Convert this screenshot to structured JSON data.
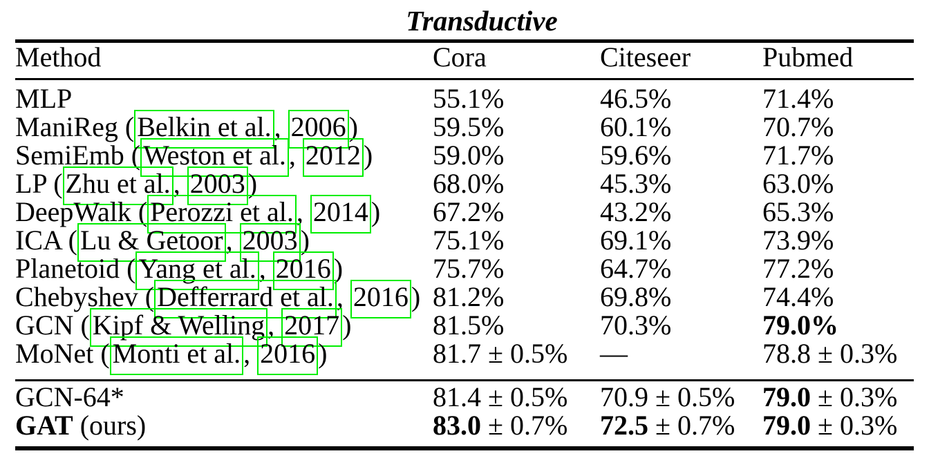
{
  "section_title": "Transductive",
  "colors": {
    "link_box_green": "#00EE00",
    "text": "#000000",
    "background": "#FFFFFF"
  },
  "table": {
    "headers": [
      "Method",
      "Cora",
      "Citeseer",
      "Pubmed"
    ],
    "main_rows": [
      {
        "method": [
          {
            "t": "MLP",
            "s": "plain"
          }
        ],
        "cora": [
          {
            "t": "55.1%",
            "s": "plain"
          }
        ],
        "citeseer": [
          {
            "t": "46.5%",
            "s": "plain"
          }
        ],
        "pubmed": [
          {
            "t": "71.4%",
            "s": "plain"
          }
        ]
      },
      {
        "method": [
          {
            "t": "ManiReg (",
            "s": "plain"
          },
          {
            "t": "Belkin et al.",
            "s": "cite"
          },
          {
            "t": ", ",
            "s": "plain"
          },
          {
            "t": "2006",
            "s": "cite"
          },
          {
            "t": ")",
            "s": "plain"
          }
        ],
        "cora": [
          {
            "t": "59.5%",
            "s": "plain"
          }
        ],
        "citeseer": [
          {
            "t": "60.1%",
            "s": "plain"
          }
        ],
        "pubmed": [
          {
            "t": "70.7%",
            "s": "plain"
          }
        ]
      },
      {
        "method": [
          {
            "t": "SemiEmb (",
            "s": "plain"
          },
          {
            "t": "Weston et al.",
            "s": "cite"
          },
          {
            "t": ", ",
            "s": "plain"
          },
          {
            "t": "2012",
            "s": "cite"
          },
          {
            "t": ")",
            "s": "plain"
          }
        ],
        "cora": [
          {
            "t": "59.0%",
            "s": "plain"
          }
        ],
        "citeseer": [
          {
            "t": "59.6%",
            "s": "plain"
          }
        ],
        "pubmed": [
          {
            "t": "71.7%",
            "s": "plain"
          }
        ]
      },
      {
        "method": [
          {
            "t": "LP (",
            "s": "plain"
          },
          {
            "t": "Zhu et al.",
            "s": "cite"
          },
          {
            "t": ", ",
            "s": "plain"
          },
          {
            "t": "2003",
            "s": "cite"
          },
          {
            "t": ")",
            "s": "plain"
          }
        ],
        "cora": [
          {
            "t": "68.0%",
            "s": "plain"
          }
        ],
        "citeseer": [
          {
            "t": "45.3%",
            "s": "plain"
          }
        ],
        "pubmed": [
          {
            "t": "63.0%",
            "s": "plain"
          }
        ]
      },
      {
        "method": [
          {
            "t": "DeepWalk (",
            "s": "plain"
          },
          {
            "t": "Perozzi et al.",
            "s": "cite"
          },
          {
            "t": ", ",
            "s": "plain"
          },
          {
            "t": "2014",
            "s": "cite"
          },
          {
            "t": ")",
            "s": "plain"
          }
        ],
        "cora": [
          {
            "t": "67.2%",
            "s": "plain"
          }
        ],
        "citeseer": [
          {
            "t": "43.2%",
            "s": "plain"
          }
        ],
        "pubmed": [
          {
            "t": "65.3%",
            "s": "plain"
          }
        ]
      },
      {
        "method": [
          {
            "t": "ICA (",
            "s": "plain"
          },
          {
            "t": "Lu & Getoor",
            "s": "cite"
          },
          {
            "t": ", ",
            "s": "plain"
          },
          {
            "t": "2003",
            "s": "cite"
          },
          {
            "t": ")",
            "s": "plain"
          }
        ],
        "cora": [
          {
            "t": "75.1%",
            "s": "plain"
          }
        ],
        "citeseer": [
          {
            "t": "69.1%",
            "s": "plain"
          }
        ],
        "pubmed": [
          {
            "t": "73.9%",
            "s": "plain"
          }
        ]
      },
      {
        "method": [
          {
            "t": "Planetoid (",
            "s": "plain"
          },
          {
            "t": "Yang et al.",
            "s": "cite"
          },
          {
            "t": ", ",
            "s": "plain"
          },
          {
            "t": "2016",
            "s": "cite"
          },
          {
            "t": ")",
            "s": "plain"
          }
        ],
        "cora": [
          {
            "t": "75.7%",
            "s": "plain"
          }
        ],
        "citeseer": [
          {
            "t": "64.7%",
            "s": "plain"
          }
        ],
        "pubmed": [
          {
            "t": "77.2%",
            "s": "plain"
          }
        ]
      },
      {
        "method": [
          {
            "t": "Chebyshev (",
            "s": "plain"
          },
          {
            "t": "Defferrard et al.",
            "s": "cite"
          },
          {
            "t": ", ",
            "s": "plain"
          },
          {
            "t": "2016",
            "s": "cite"
          },
          {
            "t": ")",
            "s": "plain"
          }
        ],
        "cora": [
          {
            "t": "81.2%",
            "s": "plain"
          }
        ],
        "citeseer": [
          {
            "t": "69.8%",
            "s": "plain"
          }
        ],
        "pubmed": [
          {
            "t": "74.4%",
            "s": "plain"
          }
        ]
      },
      {
        "method": [
          {
            "t": "GCN (",
            "s": "plain"
          },
          {
            "t": "Kipf & Welling",
            "s": "cite"
          },
          {
            "t": ", ",
            "s": "plain"
          },
          {
            "t": "2017",
            "s": "cite"
          },
          {
            "t": ")",
            "s": "plain"
          }
        ],
        "cora": [
          {
            "t": "81.5%",
            "s": "plain"
          }
        ],
        "citeseer": [
          {
            "t": "70.3%",
            "s": "plain"
          }
        ],
        "pubmed": [
          {
            "t": "79.0%",
            "s": "bold"
          }
        ]
      },
      {
        "method": [
          {
            "t": "MoNet (",
            "s": "plain"
          },
          {
            "t": "Monti et al.",
            "s": "cite"
          },
          {
            "t": ", ",
            "s": "plain"
          },
          {
            "t": "2016",
            "s": "cite"
          },
          {
            "t": ")",
            "s": "plain"
          }
        ],
        "cora": [
          {
            "t": "81.7 ± 0.5%",
            "s": "plain"
          }
        ],
        "citeseer": [
          {
            "t": "—",
            "s": "plain"
          }
        ],
        "pubmed": [
          {
            "t": "78.8 ± 0.3%",
            "s": "plain"
          }
        ]
      }
    ],
    "bottom_rows": [
      {
        "method": [
          {
            "t": "GCN-64*",
            "s": "plain"
          }
        ],
        "cora": [
          {
            "t": "81.4 ± 0.5%",
            "s": "plain"
          }
        ],
        "citeseer": [
          {
            "t": "70.9 ± 0.5%",
            "s": "plain"
          }
        ],
        "pubmed": [
          {
            "t": "79.0",
            "s": "bold"
          },
          {
            "t": " ± 0.3%",
            "s": "plain"
          }
        ]
      },
      {
        "method": [
          {
            "t": "GAT",
            "s": "bold"
          },
          {
            "t": " (ours)",
            "s": "plain"
          }
        ],
        "cora": [
          {
            "t": "83.0",
            "s": "bold"
          },
          {
            "t": " ± 0.7%",
            "s": "plain"
          }
        ],
        "citeseer": [
          {
            "t": "72.5",
            "s": "bold"
          },
          {
            "t": " ± 0.7%",
            "s": "plain"
          }
        ],
        "pubmed": [
          {
            "t": "79.0",
            "s": "bold"
          },
          {
            "t": " ± 0.3%",
            "s": "plain"
          }
        ]
      }
    ]
  }
}
